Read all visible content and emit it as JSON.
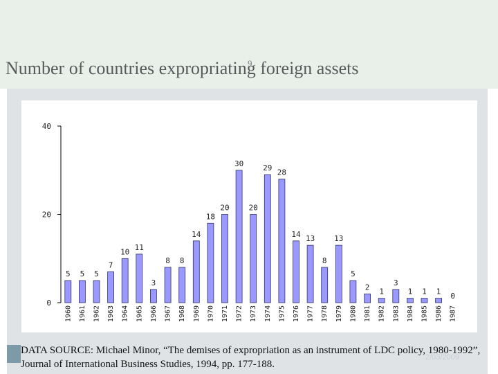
{
  "title": "Number of countries expropriating foreign assets",
  "slide_number": "9",
  "footer_date": "2/03/2009",
  "source_note": "DATA SOURCE: Michael Minor, “The demises of expropriation as an  instrument of LDC policy, 1980-1992”, Journal of International Business Studies, 1994, pp. 177-188.",
  "colors": {
    "bar_fill": "#9999ff",
    "bar_stroke": "#333366",
    "panel": "#dfe3e6",
    "header": "#e9f0ea"
  },
  "chart_data": {
    "type": "bar",
    "title": "",
    "xlabel": "",
    "ylabel": "",
    "ylim": [
      0,
      40
    ],
    "yticks": [
      "0",
      "20",
      "40"
    ],
    "grid": false,
    "categories": [
      "1960",
      "1961",
      "1962",
      "1963",
      "1964",
      "1965",
      "1966",
      "1967",
      "1968",
      "1969",
      "1970",
      "1971",
      "1972",
      "1973",
      "1974",
      "1975",
      "1976",
      "1977",
      "1978",
      "1979",
      "1980",
      "1981",
      "1982",
      "1983",
      "1984",
      "1985",
      "1986",
      "1987"
    ],
    "values": [
      5,
      5,
      5,
      7,
      10,
      11,
      3,
      8,
      8,
      14,
      18,
      20,
      30,
      20,
      29,
      28,
      14,
      13,
      8,
      13,
      5,
      2,
      1,
      3,
      1,
      1,
      1,
      0
    ]
  }
}
